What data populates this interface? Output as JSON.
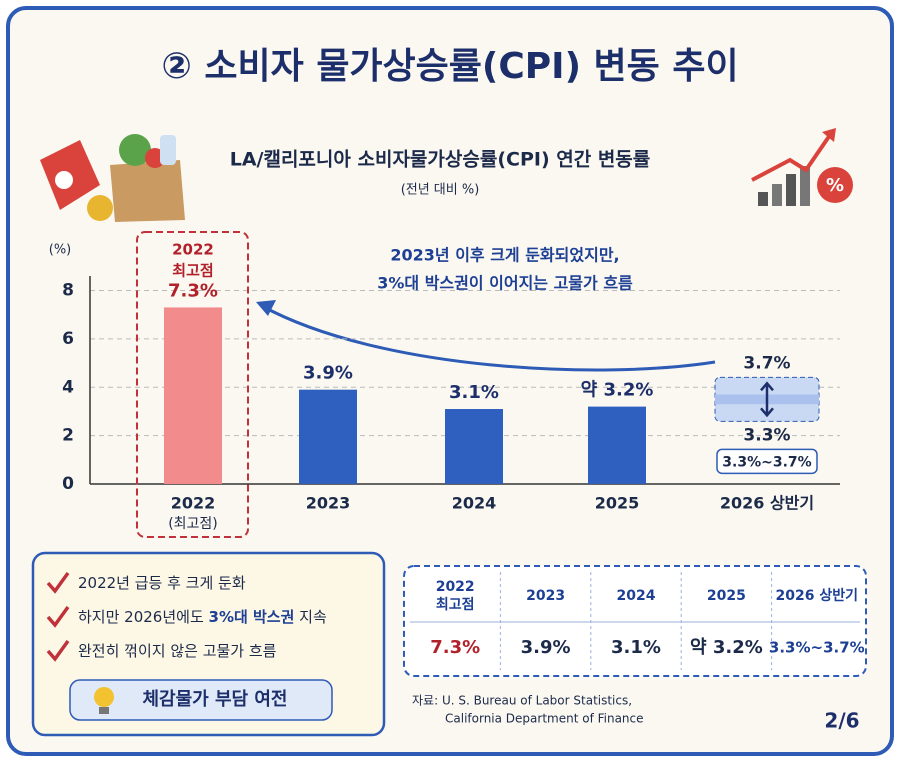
{
  "header": {
    "title": "② 소비자 물가상승률(CPI) 변동 추이"
  },
  "chart_data": {
    "type": "bar",
    "title": "LA/캘리포니아 소비자물가상승률(CPI) 연간 변동률",
    "subtitle": "(전년 대비 %)",
    "y_label": "(%)",
    "categories": [
      "2022",
      "2023",
      "2024",
      "2025",
      "2026 상반기"
    ],
    "category_notes": [
      "(최고점)",
      null,
      null,
      null,
      null
    ],
    "values": [
      7.3,
      3.9,
      3.1,
      3.2,
      null
    ],
    "value_labels": [
      "7.3%",
      "3.9%",
      "3.1%",
      "약 3.2%",
      null
    ],
    "colors": [
      "#f28b8b",
      "#2f5fbf",
      "#2f5fbf",
      "#2f5fbf",
      "#a9c1ec"
    ],
    "highlight_label": [
      "2022",
      "최고점"
    ],
    "range": {
      "low": 3.3,
      "high": 3.7,
      "low_label": "3.3%",
      "high_label": "3.7%",
      "label": "3.3%~3.7%"
    },
    "annotation": [
      "2023년 이후 크게 둔화되었지만,",
      "3%대 박스권이 이어지는 고물가 흐름"
    ],
    "ylim": [
      0,
      8.6
    ],
    "yticks": [
      0,
      2,
      4,
      6,
      8
    ],
    "grid": true
  },
  "notes": {
    "items": [
      [
        "2022년 급등 후 크게 둔화"
      ],
      [
        "하지만 2026년에도 ",
        "3%대 박스권",
        " 지속"
      ],
      [
        "완전히 꺾이지 않은 고물가 흐름"
      ]
    ],
    "callout": "체감물가 부담 여전"
  },
  "table": {
    "header": [
      [
        "2022",
        "최고점"
      ],
      [
        "2023"
      ],
      [
        "2024"
      ],
      [
        "2025"
      ],
      [
        "2026 상반기"
      ]
    ],
    "rows": [
      [
        "7.3%",
        "3.9%",
        "3.1%",
        "약 3.2%",
        "3.3%~3.7%"
      ]
    ]
  },
  "source": [
    "자료: U. S. Bureau of Labor Statistics,",
    "California Department of Finance"
  ],
  "page": "2/6"
}
